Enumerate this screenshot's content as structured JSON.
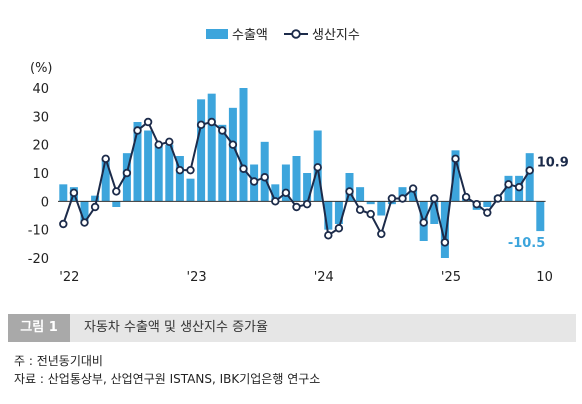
{
  "chart_data": {
    "type": "bar+line",
    "unit_label": "(%)",
    "ylim": [
      -20,
      40
    ],
    "yticks": [
      40,
      30,
      20,
      10,
      0,
      -10,
      -20
    ],
    "x_tick_labels": [
      {
        "index": 0,
        "label": "'22"
      },
      {
        "index": 12,
        "label": "'23"
      },
      {
        "index": 24,
        "label": "'24"
      },
      {
        "index": 36,
        "label": "'25"
      },
      {
        "index": 45,
        "label": "10"
      }
    ],
    "series": [
      {
        "name": "수출액",
        "kind": "bar",
        "color": "#3da5dc",
        "values": [
          6,
          5,
          -8,
          2,
          15,
          -2,
          17,
          28,
          25,
          20,
          20,
          16,
          8,
          36,
          38,
          27,
          33,
          40,
          13,
          21,
          6,
          13,
          16,
          10,
          25,
          -10,
          -8,
          10,
          5,
          -1,
          -5,
          -1,
          5,
          4,
          -14,
          -8,
          -20,
          18,
          1,
          -3,
          -2,
          2,
          9,
          9,
          17,
          -10.5
        ]
      },
      {
        "name": "생산지수",
        "kind": "line",
        "color": "#1c2b4a",
        "values": [
          -8,
          3,
          -7.5,
          -2,
          15,
          3.5,
          10,
          25,
          28,
          20,
          21,
          11,
          11,
          27,
          28,
          25,
          20,
          11.5,
          7,
          8.5,
          0,
          3,
          -2,
          -1,
          12,
          -12,
          -9.5,
          3.5,
          -3,
          -4.5,
          -11.5,
          1,
          1,
          4.5,
          -7.5,
          1,
          -14.5,
          15,
          1.5,
          -1,
          -4,
          1,
          6,
          5,
          10.9
        ]
      }
    ],
    "annotations": [
      {
        "text": "10.9",
        "series": "생산지수",
        "index": 44,
        "color": "#1c2b4a"
      },
      {
        "text": "-10.5",
        "series": "수출액",
        "index": 45,
        "color": "#3da5dc"
      }
    ],
    "grid": false,
    "legend_position": "top-center"
  },
  "caption": {
    "tag": "그림 1",
    "title": "자동차 수출액 및 생산지수 증가율"
  },
  "notes": {
    "note": "주 : 전년동기대비",
    "source": "자료 : 산업통상부, 산업연구원 ISTANS, IBK기업은행 연구소"
  }
}
